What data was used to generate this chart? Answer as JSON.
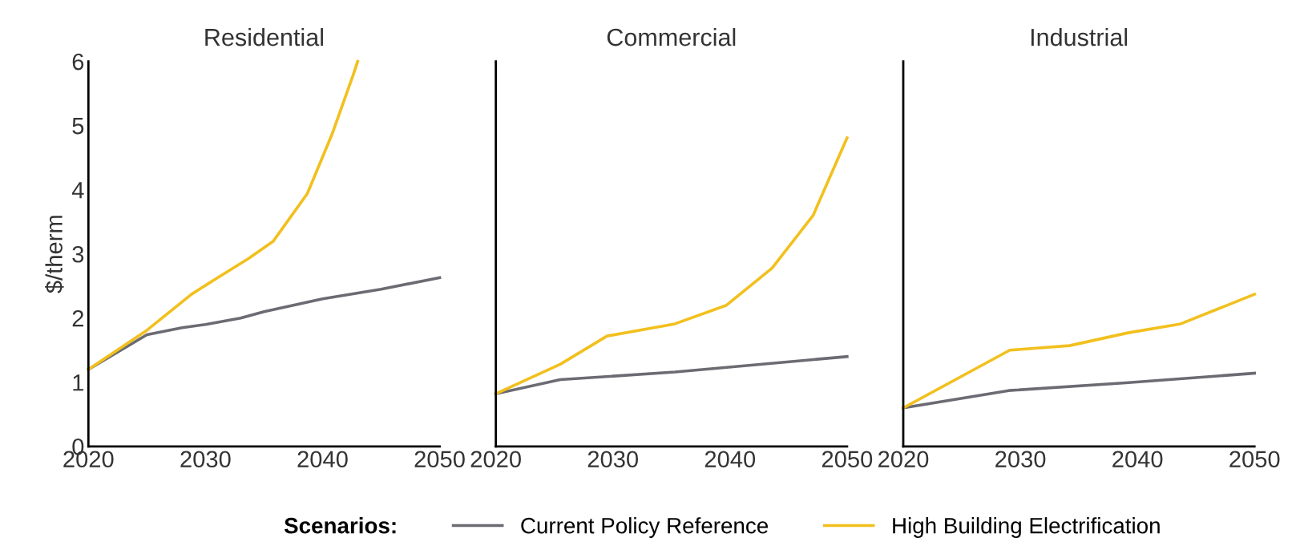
{
  "chart_data": [
    {
      "type": "line",
      "title": "Residential",
      "ylabel": "$/therm",
      "xlim": [
        2020,
        2050
      ],
      "xticks": [
        2020,
        2030,
        2040,
        2050
      ],
      "ylim": [
        0,
        6
      ],
      "yticks": [
        0,
        1,
        2,
        3,
        4,
        5,
        6
      ],
      "legend": "bottom",
      "legend_title": "Scenarios:",
      "grid": false,
      "series": [
        {
          "name": "Current Policy Reference",
          "color": "#6b6b73",
          "x": [
            2020,
            2025,
            2028,
            2030,
            2033,
            2035,
            2040,
            2045,
            2050
          ],
          "values": [
            1.2,
            1.74,
            1.85,
            1.9,
            2.0,
            2.1,
            2.3,
            2.45,
            2.63
          ]
        },
        {
          "name": "High Building Electrification",
          "color": "#f2c01e",
          "x": [
            2020,
            2025,
            2028.8,
            2030.7,
            2033.7,
            2035.8,
            2038.7,
            2040.8,
            2042.6,
            2043
          ],
          "values": [
            1.2,
            1.81,
            2.37,
            2.59,
            2.93,
            3.2,
            3.94,
            4.86,
            5.78,
            6.0
          ]
        }
      ]
    },
    {
      "type": "line",
      "title": "Commercial",
      "xlim": [
        2020,
        2050
      ],
      "xticks": [
        2020,
        2030,
        2040,
        2050
      ],
      "ylim": [
        0,
        6
      ],
      "tick_labels": "x",
      "grid": false,
      "series": [
        {
          "name": "Current Policy Reference",
          "color": "#6b6b73",
          "x": [
            2020,
            2025.5,
            2035.3,
            2050
          ],
          "values": [
            0.82,
            1.04,
            1.16,
            1.4
          ]
        },
        {
          "name": "High Building Electrification",
          "color": "#f2c01e",
          "x": [
            2020,
            2025.5,
            2029.5,
            2035.3,
            2039.7,
            2043.6,
            2047.1,
            2050
          ],
          "values": [
            0.82,
            1.28,
            1.72,
            1.91,
            2.2,
            2.78,
            3.6,
            4.81
          ]
        }
      ]
    },
    {
      "type": "line",
      "title": "Industrial",
      "xlim": [
        2020,
        2050
      ],
      "xticks": [
        2020,
        2030,
        2040,
        2050
      ],
      "ylim": [
        0,
        6
      ],
      "tick_labels": "x",
      "grid": false,
      "series": [
        {
          "name": "Current Policy Reference",
          "color": "#6b6b73",
          "x": [
            2020,
            2029,
            2039,
            2050
          ],
          "values": [
            0.6,
            0.87,
            0.99,
            1.14
          ]
        },
        {
          "name": "High Building Electrification",
          "color": "#f2c01e",
          "x": [
            2020,
            2029.1,
            2034.2,
            2039.2,
            2043.7,
            2050
          ],
          "values": [
            0.6,
            1.5,
            1.57,
            1.77,
            1.91,
            2.37
          ]
        }
      ]
    }
  ]
}
